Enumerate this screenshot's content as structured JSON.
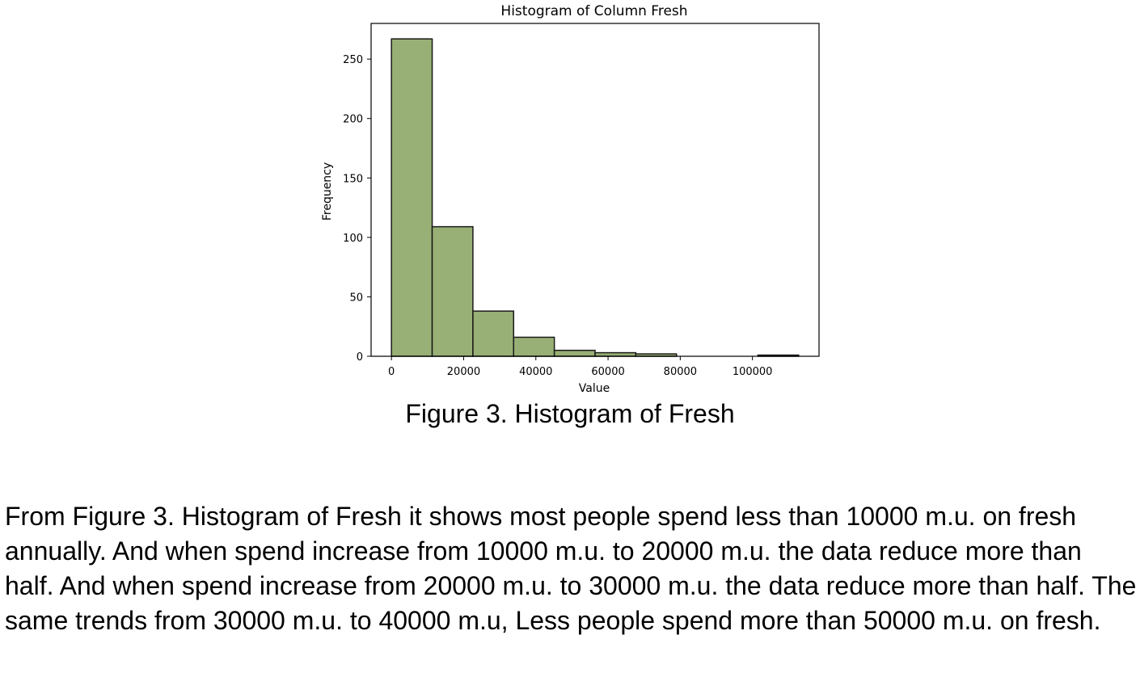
{
  "chart_data": {
    "type": "bar",
    "title": "Histogram of Column Fresh",
    "xlabel": "Value",
    "ylabel": "Frequency",
    "bin_edges": [
      3,
      11283,
      22563,
      33843,
      45123,
      56403,
      67683,
      78963,
      90243,
      101523,
      112803
    ],
    "values": [
      267,
      109,
      38,
      16,
      5,
      3,
      2,
      0,
      0,
      1
    ],
    "xlim": [
      -5637,
      118443
    ],
    "ylim": [
      0,
      280
    ],
    "xticks": [
      0,
      20000,
      40000,
      60000,
      80000,
      100000
    ],
    "yticks": [
      0,
      50,
      100,
      150,
      200,
      250
    ],
    "bar_color": "#98b075",
    "edge_color": "#1a1a1a",
    "grid": false
  },
  "caption": "Figure 3. Histogram of Fresh",
  "paragraph": "From Figure 3. Histogram of Fresh it shows most people spend less than 10000 m.u. on fresh annually. And when spend increase from 10000 m.u. to 20000 m.u. the data reduce more than half. And when spend increase from 20000 m.u. to 30000 m.u. the data reduce more than half. The same trends from 30000 m.u. to 40000 m.u, Less people spend more than 50000 m.u. on fresh."
}
